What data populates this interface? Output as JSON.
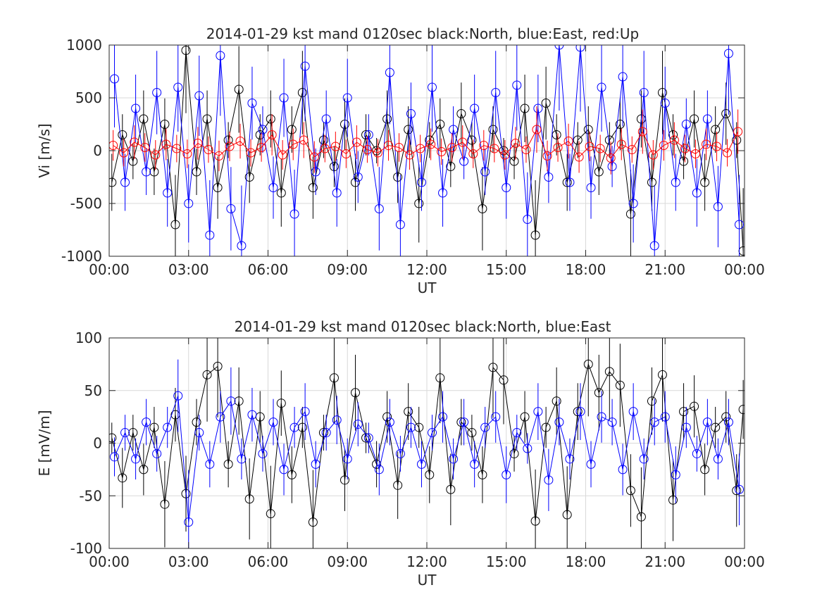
{
  "chart_data": [
    {
      "type": "line",
      "title": "2014-01-29 kst mand 0120sec black:North, blue:East, red:Up",
      "xlabel": "UT",
      "ylabel": "Vi [m/s]",
      "xlim": [
        0,
        24
      ],
      "ylim": [
        -1000,
        1000
      ],
      "grid": true,
      "xticks": [
        "00:00",
        "03:00",
        "06:00",
        "09:00",
        "12:00",
        "15:00",
        "18:00",
        "21:00",
        "00:00"
      ],
      "yticks": [
        "-1000",
        "-500",
        "0",
        "500",
        "1000"
      ],
      "marker": "open-circle",
      "error_bars": true,
      "series": [
        {
          "color": "#000000",
          "x": [
            0.1,
            0.5,
            0.9,
            1.3,
            1.7,
            2.1,
            2.5,
            2.9,
            3.3,
            3.7,
            4.1,
            4.5,
            4.9,
            5.3,
            5.7,
            6.1,
            6.5,
            6.9,
            7.3,
            7.7,
            8.1,
            8.5,
            8.9,
            9.3,
            9.7,
            10.1,
            10.5,
            10.9,
            11.3,
            11.7,
            12.1,
            12.5,
            12.9,
            13.3,
            13.7,
            14.1,
            14.5,
            14.9,
            15.3,
            15.7,
            16.1,
            16.5,
            16.9,
            17.3,
            17.7,
            18.1,
            18.5,
            18.9,
            19.3,
            19.7,
            20.1,
            20.5,
            20.9,
            21.3,
            21.7,
            22.1,
            22.5,
            22.9,
            23.3,
            23.7,
            23.95
          ],
          "y": [
            -300,
            150,
            -100,
            300,
            -200,
            250,
            -700,
            950,
            -200,
            300,
            -350,
            100,
            580,
            -250,
            150,
            300,
            -400,
            200,
            550,
            -350,
            100,
            -150,
            250,
            -300,
            150,
            0,
            300,
            -250,
            200,
            -500,
            100,
            250,
            -150,
            350,
            100,
            -550,
            200,
            0,
            -100,
            400,
            -800,
            450,
            150,
            -300,
            100,
            200,
            -200,
            100,
            250,
            -600,
            300,
            -300,
            550,
            150,
            -100,
            300,
            -300,
            200,
            350,
            100,
            -950
          ]
        },
        {
          "color": "#0000ff",
          "x": [
            0.2,
            0.6,
            1.0,
            1.4,
            1.8,
            2.2,
            2.6,
            3.0,
            3.4,
            3.8,
            4.2,
            4.6,
            5.0,
            5.4,
            5.8,
            6.2,
            6.6,
            7.0,
            7.4,
            7.8,
            8.2,
            8.6,
            9.0,
            9.4,
            9.8,
            10.2,
            10.6,
            11.0,
            11.4,
            11.8,
            12.2,
            12.6,
            13.0,
            13.4,
            13.8,
            14.2,
            14.6,
            15.0,
            15.4,
            15.8,
            16.2,
            16.6,
            17.0,
            17.4,
            17.8,
            18.2,
            18.6,
            19.0,
            19.4,
            19.8,
            20.2,
            20.6,
            21.0,
            21.4,
            21.8,
            22.2,
            22.6,
            23.0,
            23.4,
            23.8
          ],
          "y": [
            680,
            -300,
            400,
            -200,
            550,
            -400,
            600,
            -500,
            520,
            -800,
            900,
            -550,
            -900,
            450,
            200,
            -350,
            500,
            -600,
            800,
            -200,
            300,
            -400,
            500,
            -250,
            150,
            -550,
            740,
            -700,
            350,
            -300,
            600,
            -400,
            200,
            -100,
            400,
            -200,
            550,
            -350,
            620,
            -650,
            400,
            -250,
            1000,
            -300,
            980,
            -350,
            600,
            -150,
            700,
            -500,
            550,
            -900,
            450,
            -300,
            250,
            -400,
            300,
            -530,
            920,
            -700
          ]
        },
        {
          "color": "#ff0000",
          "x": [
            0.15,
            0.55,
            0.95,
            1.35,
            1.75,
            2.15,
            2.55,
            2.95,
            3.35,
            3.75,
            4.15,
            4.55,
            4.95,
            5.35,
            5.75,
            6.15,
            6.55,
            6.95,
            7.35,
            7.75,
            8.15,
            8.55,
            8.95,
            9.35,
            9.75,
            10.15,
            10.55,
            10.95,
            11.35,
            11.75,
            12.15,
            12.55,
            12.95,
            13.35,
            13.75,
            14.15,
            14.55,
            14.95,
            15.35,
            15.75,
            16.15,
            16.55,
            16.95,
            17.35,
            17.75,
            18.15,
            18.55,
            18.95,
            19.35,
            19.75,
            20.15,
            20.55,
            20.95,
            21.35,
            21.75,
            22.15,
            22.55,
            22.95,
            23.35,
            23.75
          ],
          "y": [
            50,
            -20,
            80,
            30,
            -40,
            60,
            20,
            -30,
            70,
            10,
            -50,
            40,
            90,
            -20,
            30,
            150,
            -40,
            60,
            100,
            -60,
            20,
            40,
            -30,
            80,
            10,
            -20,
            50,
            30,
            -40,
            20,
            60,
            -10,
            30,
            80,
            -30,
            50,
            20,
            -40,
            70,
            10,
            200,
            -50,
            30,
            90,
            -60,
            40,
            20,
            -70,
            60,
            10,
            180,
            -40,
            50,
            100,
            20,
            -30,
            60,
            40,
            -20,
            180
          ]
        }
      ]
    },
    {
      "type": "line",
      "title": "2014-01-29 kst mand 0120sec black:North, blue:East",
      "xlabel": "UT",
      "ylabel": "E [mV/m]",
      "xlim": [
        0,
        24
      ],
      "ylim": [
        -100,
        100
      ],
      "grid": true,
      "xticks": [
        "00:00",
        "03:00",
        "06:00",
        "09:00",
        "12:00",
        "15:00",
        "18:00",
        "21:00",
        "00:00"
      ],
      "yticks": [
        "-100",
        "-50",
        "0",
        "50",
        "100"
      ],
      "marker": "open-circle",
      "error_bars": true,
      "series": [
        {
          "color": "#000000",
          "x": [
            0.1,
            0.5,
            0.9,
            1.3,
            1.7,
            2.1,
            2.5,
            2.9,
            3.3,
            3.7,
            4.1,
            4.5,
            4.9,
            5.3,
            5.7,
            6.1,
            6.5,
            6.9,
            7.3,
            7.7,
            8.1,
            8.5,
            8.9,
            9.3,
            9.7,
            10.1,
            10.5,
            10.9,
            11.3,
            11.7,
            12.1,
            12.5,
            12.9,
            13.3,
            13.7,
            14.1,
            14.5,
            14.9,
            15.3,
            15.7,
            16.1,
            16.5,
            16.9,
            17.3,
            17.7,
            18.1,
            18.5,
            18.9,
            19.3,
            19.7,
            20.1,
            20.5,
            20.9,
            21.3,
            21.7,
            22.1,
            22.5,
            22.9,
            23.3,
            23.7,
            23.95
          ],
          "y": [
            5,
            -33,
            10,
            -25,
            15,
            -58,
            27,
            -48,
            20,
            65,
            73,
            -20,
            40,
            -53,
            25,
            -67,
            38,
            -30,
            15,
            -75,
            10,
            62,
            -35,
            48,
            5,
            -20,
            25,
            -40,
            30,
            15,
            -30,
            62,
            -44,
            20,
            10,
            -30,
            72,
            60,
            -10,
            25,
            -74,
            15,
            40,
            -68,
            30,
            75,
            48,
            68,
            55,
            -45,
            -70,
            40,
            65,
            -54,
            30,
            35,
            -25,
            15,
            25,
            -45,
            32
          ]
        },
        {
          "color": "#0000ff",
          "x": [
            0.2,
            0.6,
            1.0,
            1.4,
            1.8,
            2.2,
            2.6,
            3.0,
            3.4,
            3.8,
            4.2,
            4.6,
            5.0,
            5.4,
            5.8,
            6.2,
            6.6,
            7.0,
            7.4,
            7.8,
            8.2,
            8.6,
            9.0,
            9.4,
            9.8,
            10.2,
            10.6,
            11.0,
            11.4,
            11.8,
            12.2,
            12.6,
            13.0,
            13.4,
            13.8,
            14.2,
            14.6,
            15.0,
            15.4,
            15.8,
            16.2,
            16.6,
            17.0,
            17.4,
            17.8,
            18.2,
            18.6,
            19.0,
            19.4,
            19.8,
            20.2,
            20.6,
            21.0,
            21.4,
            21.8,
            22.2,
            22.6,
            23.0,
            23.4,
            23.8
          ],
          "y": [
            -13,
            10,
            -15,
            20,
            -10,
            15,
            45,
            -75,
            10,
            -20,
            25,
            40,
            -15,
            27,
            -10,
            20,
            -25,
            15,
            30,
            -20,
            10,
            22,
            -15,
            18,
            5,
            -25,
            20,
            -10,
            15,
            -20,
            10,
            25,
            -15,
            20,
            -20,
            15,
            25,
            -30,
            10,
            -5,
            30,
            -35,
            20,
            -15,
            30,
            -20,
            25,
            20,
            -25,
            30,
            -15,
            20,
            25,
            -30,
            15,
            -10,
            20,
            -15,
            20,
            -44
          ]
        }
      ]
    }
  ]
}
